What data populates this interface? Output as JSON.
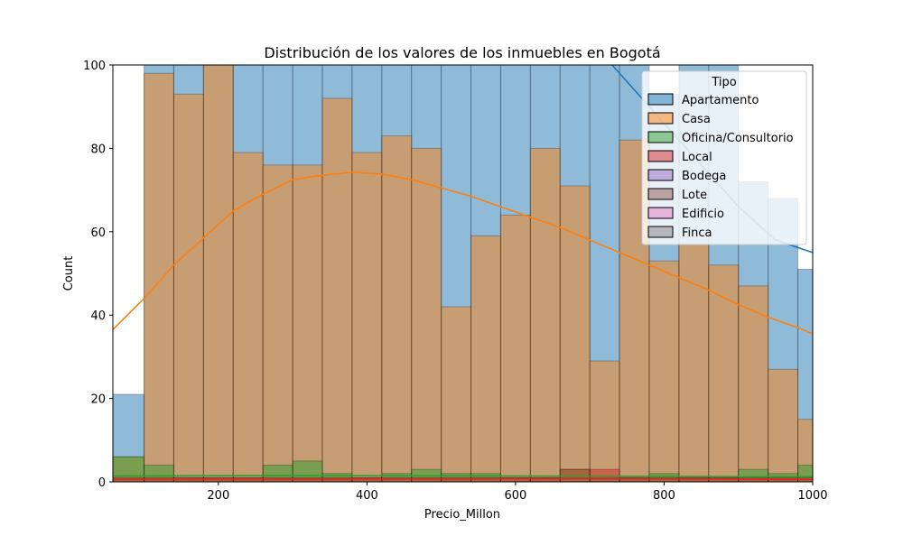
{
  "chart_data": {
    "type": "histogram",
    "title": "Distribución de los valores de los inmuebles en Bogotá",
    "xlabel": "Precio_Millon",
    "ylabel": "Count",
    "xlim": [
      58,
      1000
    ],
    "ylim": [
      0,
      100
    ],
    "xticks": [
      200,
      400,
      600,
      800,
      1000
    ],
    "yticks": [
      0,
      20,
      40,
      60,
      80,
      100
    ],
    "bin_edges": [
      58,
      100,
      140,
      180,
      220,
      260,
      300,
      340,
      380,
      420,
      460,
      500,
      540,
      580,
      620,
      660,
      700,
      740,
      780,
      820,
      860,
      900,
      940,
      980,
      1000
    ],
    "grid": false,
    "legend": {
      "title": "Tipo",
      "placement": "top-right"
    },
    "series": [
      {
        "name": "Apartamento",
        "color": "#1f77b4",
        "values": [
          21,
          100,
          100,
          100,
          100,
          100,
          100,
          100,
          100,
          100,
          100,
          100,
          100,
          100,
          100,
          100,
          100,
          100,
          93,
          100,
          100,
          72,
          68,
          51
        ]
      },
      {
        "name": "Casa",
        "color": "#ff7f0e",
        "values": [
          6,
          98,
          93,
          100,
          79,
          76,
          76,
          92,
          79,
          83,
          80,
          42,
          59,
          64,
          80,
          71,
          29,
          82,
          53,
          57,
          52,
          47,
          27,
          15
        ]
      },
      {
        "name": "Oficina/Consultorio",
        "color": "#2ca02c",
        "values": [
          6,
          4,
          1,
          1,
          1,
          4,
          5,
          2,
          1,
          2,
          3,
          2,
          2,
          1,
          1,
          3,
          1,
          1,
          2,
          1,
          1,
          3,
          2,
          4
        ]
      },
      {
        "name": "Local",
        "color": "#d62728",
        "values": [
          1,
          1,
          1,
          1,
          1,
          1,
          1,
          1,
          1,
          1,
          1,
          1,
          1,
          1,
          1,
          3,
          3,
          1,
          1,
          1,
          1,
          1,
          1,
          1
        ]
      },
      {
        "name": "Bodega",
        "color": "#9467bd",
        "values": []
      },
      {
        "name": "Lote",
        "color": "#8c564b",
        "values": []
      },
      {
        "name": "Edificio",
        "color": "#e377c2",
        "values": []
      },
      {
        "name": "Finca",
        "color": "#7f7f7f",
        "values": []
      }
    ],
    "kde": [
      {
        "name": "Apartamento",
        "color": "#1f77b4",
        "x": [
          730,
          800,
          860,
          900,
          950,
          1000
        ],
        "y": [
          100,
          86,
          74,
          66,
          58,
          55
        ]
      },
      {
        "name": "Casa",
        "color": "#ff7f0e",
        "x": [
          58,
          100,
          140,
          180,
          220,
          260,
          300,
          340,
          380,
          420,
          460,
          500,
          540,
          580,
          620,
          660,
          700,
          740,
          780,
          820,
          860,
          900,
          940,
          980,
          1000
        ],
        "y": [
          36.5,
          44,
          52,
          58.5,
          65,
          69,
          72.5,
          73.5,
          74.3,
          73.8,
          72.5,
          70.5,
          68.5,
          66,
          63.5,
          61,
          58,
          55,
          52,
          49,
          46,
          42.5,
          39.5,
          37,
          35.5
        ]
      },
      {
        "name": "Oficina/Consultorio",
        "color": "#2ca02c",
        "x": [
          58,
          300,
          600,
          1000
        ],
        "y": [
          1.4,
          1.5,
          1.4,
          1.2
        ]
      },
      {
        "name": "Local",
        "color": "#d62728",
        "x": [
          58,
          400,
          700,
          1000
        ],
        "y": [
          0.6,
          0.7,
          0.8,
          0.6
        ]
      }
    ]
  }
}
